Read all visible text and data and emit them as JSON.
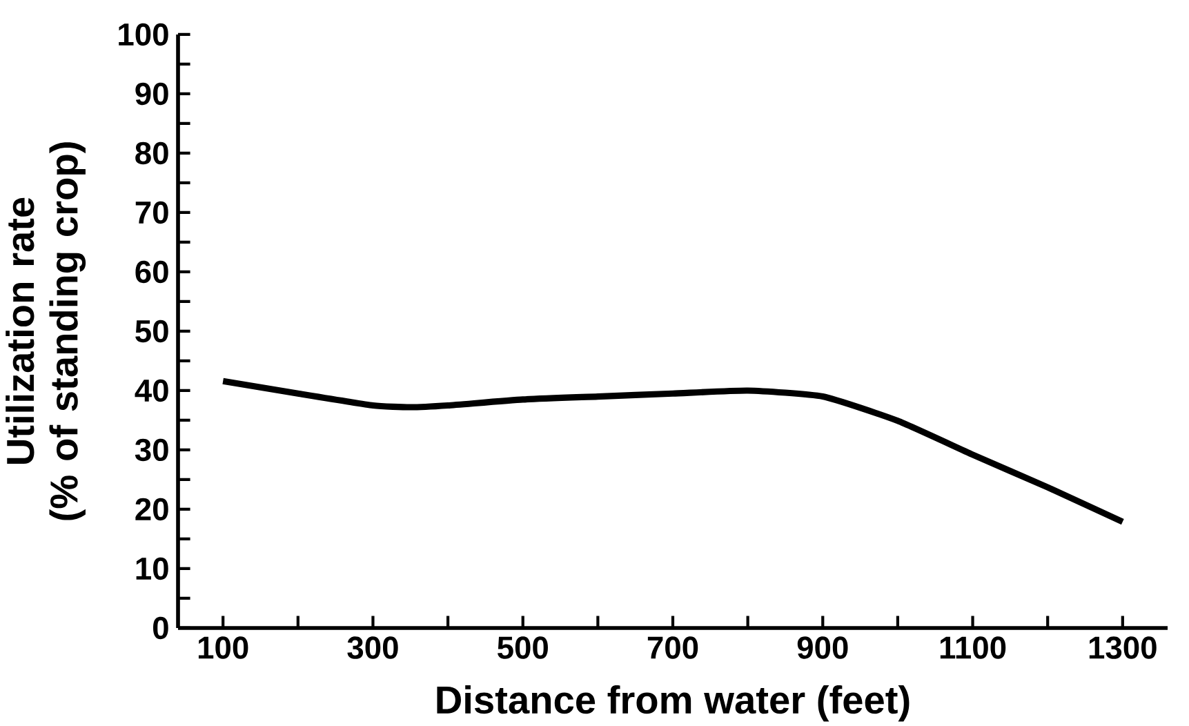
{
  "chart_data": {
    "type": "line",
    "xlabel": "Distance from water (feet)",
    "ylabel": "Utilization rate\n(% of standing crop)",
    "x": [
      100,
      200,
      300,
      350,
      400,
      500,
      600,
      700,
      800,
      900,
      1000,
      1100,
      1200,
      1300
    ],
    "values": [
      41.6,
      39.5,
      37.5,
      37.2,
      37.5,
      38.5,
      39,
      39.5,
      40,
      39,
      34.9,
      29.2,
      23.7,
      17.9
    ],
    "color": "#000000",
    "xlim": [
      40,
      1360
    ],
    "xticks": [
      100,
      300,
      500,
      700,
      900,
      1100,
      1300
    ],
    "ylim": [
      0,
      100
    ],
    "yticks": [
      0,
      10,
      20,
      30,
      40,
      50,
      60,
      70,
      80,
      90,
      100
    ]
  }
}
